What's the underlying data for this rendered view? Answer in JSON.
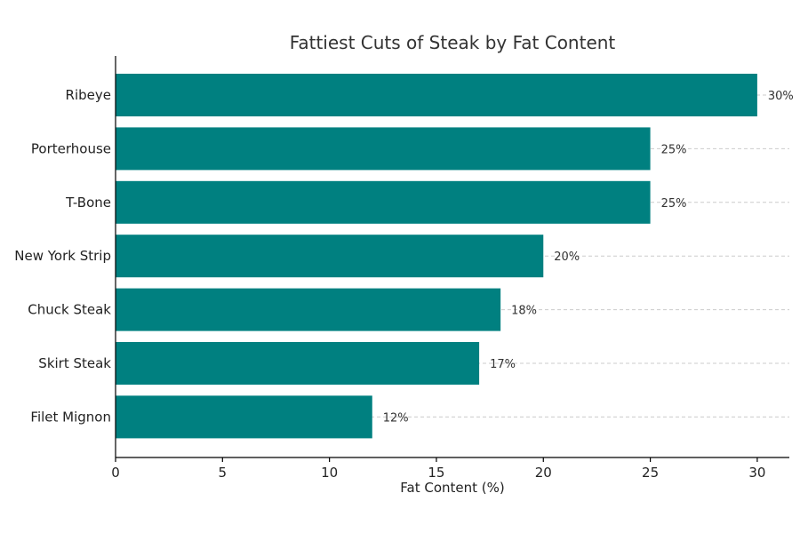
{
  "chart_data": {
    "type": "bar",
    "orientation": "horizontal",
    "title": "Fattiest Cuts of Steak by Fat Content",
    "xlabel": "Fat Content (%)",
    "ylabel": "",
    "categories": [
      "Ribeye",
      "Porterhouse",
      "T-Bone",
      "New York Strip",
      "Chuck Steak",
      "Skirt Steak",
      "Filet Mignon"
    ],
    "values": [
      30,
      25,
      25,
      20,
      18,
      17,
      12
    ],
    "data_labels": [
      "30%",
      "25%",
      "25%",
      "20%",
      "18%",
      "17%",
      "12%"
    ],
    "xlim": [
      0,
      31.5
    ],
    "xticks": [
      0,
      5,
      10,
      15,
      20,
      25,
      30
    ],
    "grid": "horizontal dashed",
    "bar_color": "#008080"
  }
}
